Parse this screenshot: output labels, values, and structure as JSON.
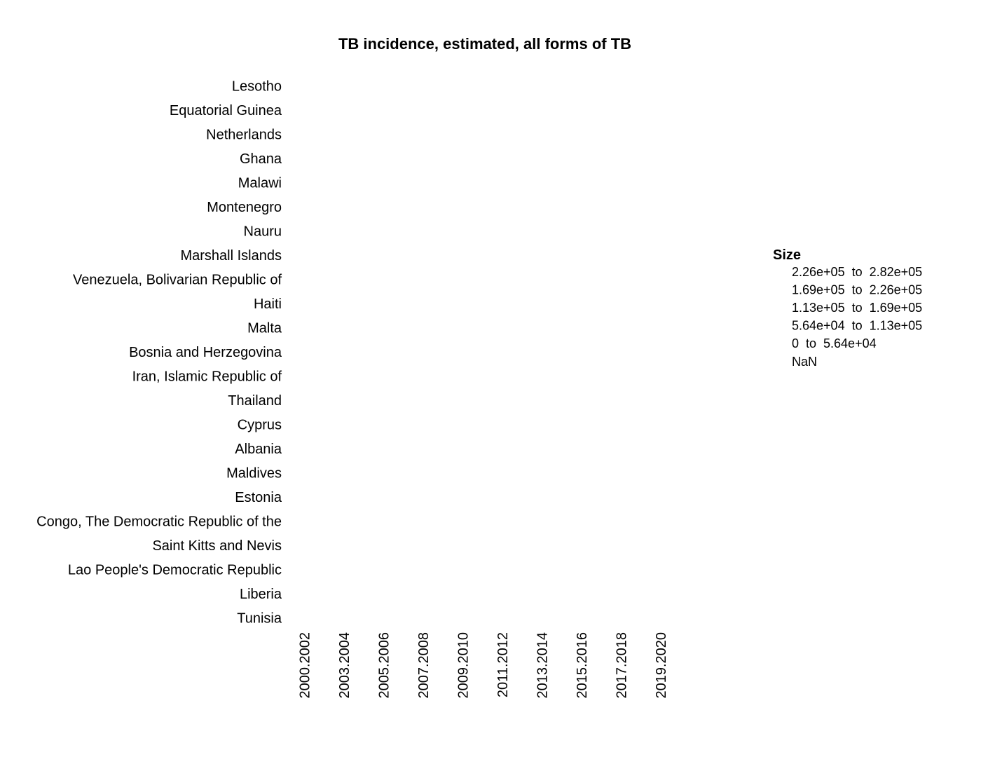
{
  "chart_data": {
    "type": "heatmap",
    "title": "TB incidence, estimated, all forms of TB",
    "xlabel": "",
    "ylabel": "",
    "x": [
      "2000.2002",
      "2003.2004",
      "2005.2006",
      "2007.2008",
      "2009.2010",
      "2011.2012",
      "2013.2014",
      "2015.2016",
      "2017.2018",
      "2019.2020"
    ],
    "y": [
      "Lesotho",
      "Equatorial Guinea",
      "Netherlands",
      "Ghana",
      "Malawi",
      "Montenegro",
      "Nauru",
      "Marshall Islands",
      "Venezuela, Bolivarian Republic of",
      "Haiti",
      "Malta",
      "Bosnia and Herzegovina",
      "Iran, Islamic Republic of",
      "Thailand",
      "Cyprus",
      "Albania",
      "Maldives",
      "Estonia",
      "Congo, The Democratic Republic of the",
      "Saint Kitts and Nevis",
      "Lao People's Democratic Republic",
      "Liberia",
      "Tunisia"
    ],
    "legend": {
      "title": "Size",
      "position": "right",
      "entries": [
        "2.26e+05  to  2.82e+05",
        "1.69e+05  to  2.26e+05",
        "1.13e+05  to  1.69e+05",
        "5.64e+04  to  1.13e+05",
        "0  to  5.64e+04",
        "NaN"
      ]
    },
    "grid": false
  }
}
